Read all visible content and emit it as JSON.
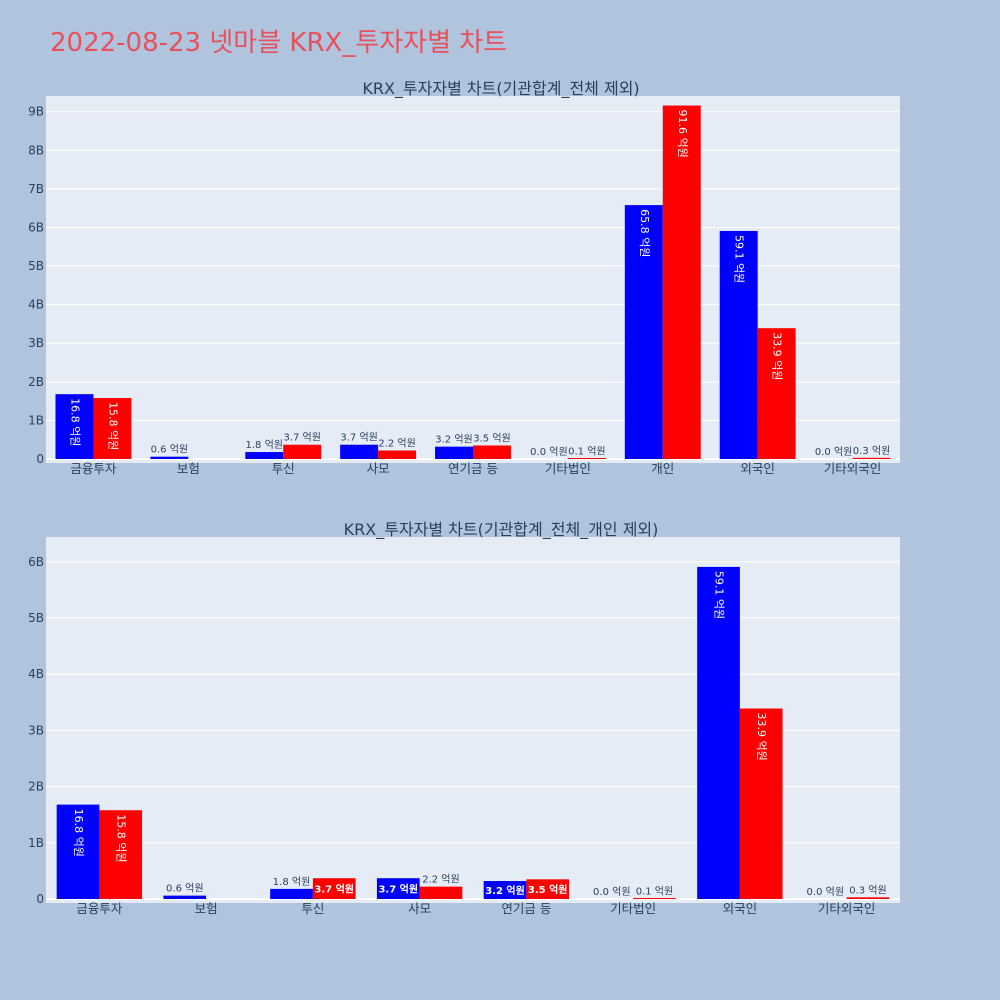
{
  "title": "2022-08-23 넷마블 KRX_투자자별 차트",
  "colors": {
    "background": "#b0c4de",
    "plot_bg": "#e5ecf6",
    "title": "#e8505b",
    "series1": "#0000ff",
    "series2": "#ff0000"
  },
  "chart_data": [
    {
      "type": "bar",
      "title": "KRX_투자자별 차트(기관합계_전체 제외)",
      "categories": [
        "금융투자",
        "보험",
        "투신",
        "사모",
        "연기금 등",
        "기타법인",
        "개인",
        "외국인",
        "기타외국인"
      ],
      "ylim": [
        0,
        9.2
      ],
      "yticks": [
        "0",
        "1B",
        "2B",
        "3B",
        "4B",
        "5B",
        "6B",
        "7B",
        "8B",
        "9B"
      ],
      "grid": true,
      "series": [
        {
          "values": [
            1.68,
            0.06,
            0.18,
            0.37,
            0.32,
            0.0,
            6.58,
            5.91,
            0.0
          ],
          "labels": [
            "16.8 억원",
            "0.6 억원",
            "1.8 억원",
            "3.7 억원",
            "3.2 억원",
            "0.0 억원",
            "65.8 억원",
            "59.1 억원",
            "0.0 억원"
          ]
        },
        {
          "values": [
            1.58,
            0.0,
            0.37,
            0.22,
            0.35,
            0.01,
            9.16,
            3.39,
            0.03
          ],
          "labels": [
            "15.8 억원",
            "",
            "3.7 억원",
            "2.2 억원",
            "3.5 억원",
            "0.1 억원",
            "91.6 억원",
            "33.9 억원",
            "0.3 억원"
          ]
        }
      ]
    },
    {
      "type": "bar",
      "title": "KRX_투자자별 차트(기관합계_전체_개인 제외)",
      "categories": [
        "금융투자",
        "보험",
        "투신",
        "사모",
        "연기금 등",
        "기타법인",
        "외국인",
        "기타외국인"
      ],
      "ylim": [
        0,
        6.3
      ],
      "yticks": [
        "0",
        "1B",
        "2B",
        "3B",
        "4B",
        "5B",
        "6B"
      ],
      "grid": true,
      "series": [
        {
          "values": [
            1.68,
            0.06,
            0.18,
            0.37,
            0.32,
            0.0,
            5.91,
            0.0
          ],
          "labels": [
            "16.8 억원",
            "0.6 억원",
            "1.8 억원",
            "3.7 억원",
            "3.2 억원",
            "0.0 억원",
            "59.1 억원",
            "0.0 억원"
          ]
        },
        {
          "values": [
            1.58,
            0.0,
            0.37,
            0.22,
            0.35,
            0.01,
            3.39,
            0.03
          ],
          "labels": [
            "15.8 억원",
            "",
            "3.7 억원",
            "2.2 억원",
            "3.5 억원",
            "0.1 억원",
            "33.9 억원",
            "0.3 억원"
          ]
        }
      ]
    }
  ]
}
